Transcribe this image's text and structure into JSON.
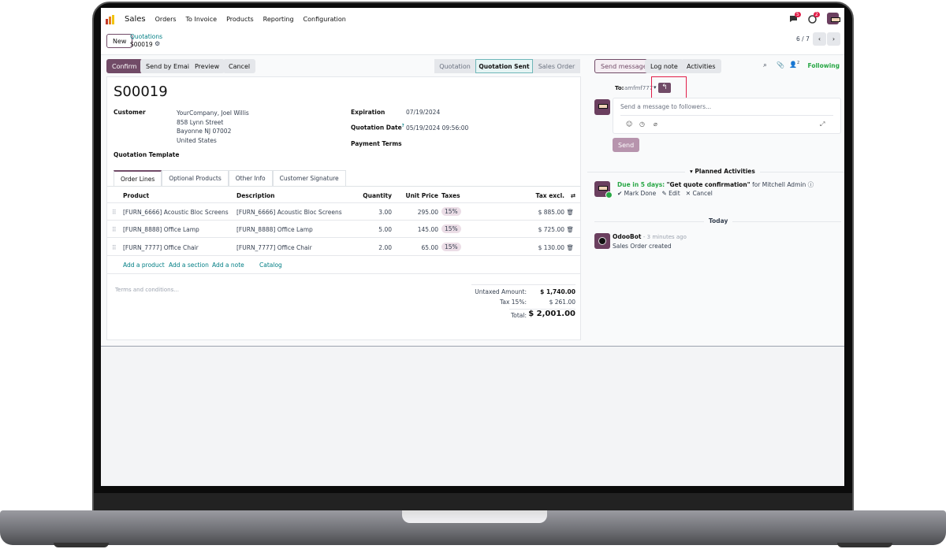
{
  "navbar": {
    "app": "Sales",
    "menu": [
      "Orders",
      "To Invoice",
      "Products",
      "Reporting",
      "Configuration"
    ],
    "chat_badge": "5",
    "activity_badge": "2"
  },
  "control": {
    "new_label": "New",
    "breadcrumb_parent": "Quotations",
    "breadcrumb_current": "S00019",
    "pager": "6 / 7"
  },
  "statusbar": {
    "buttons": [
      "Confirm",
      "Send by Email",
      "Preview",
      "Cancel"
    ],
    "stages": [
      "Quotation",
      "Quotation Sent",
      "Sales Order"
    ],
    "active_stage": "Quotation Sent"
  },
  "form": {
    "title": "S00019",
    "customer_label": "Customer",
    "customer": [
      "YourCompany, Joel Willis",
      "858 Lynn Street",
      "Bayonne NJ 07002",
      "United States"
    ],
    "expiration_label": "Expiration",
    "expiration": "07/19/2024",
    "quotation_date_label": "Quotation Date",
    "quotation_date_help": "?",
    "quotation_date": "05/19/2024 09:56:00",
    "payment_terms_label": "Payment Terms",
    "template_label": "Quotation Template"
  },
  "tabs": [
    "Order Lines",
    "Optional Products",
    "Other Info",
    "Customer Signature"
  ],
  "table": {
    "headers": [
      "Product",
      "Description",
      "Quantity",
      "Unit Price",
      "Taxes",
      "Tax excl."
    ],
    "rows": [
      {
        "product": "[FURN_6666] Acoustic Bloc Screens",
        "description": "[FURN_6666] Acoustic Bloc Screens",
        "qty": "3.00",
        "price": "295.00",
        "tax": "15%",
        "subtotal": "$ 885.00"
      },
      {
        "product": "[FURN_8888] Office Lamp",
        "description": "[FURN_8888] Office Lamp",
        "qty": "5.00",
        "price": "145.00",
        "tax": "15%",
        "subtotal": "$ 725.00"
      },
      {
        "product": "[FURN_7777] Office Chair",
        "description": "[FURN_7777] Office Chair",
        "qty": "2.00",
        "price": "65.00",
        "tax": "15%",
        "subtotal": "$ 130.00"
      }
    ],
    "actions": [
      "Add a product",
      "Add a section",
      "Add a note",
      "Catalog"
    ]
  },
  "footer": {
    "terms_placeholder": "Terms and conditions...",
    "untaxed_label": "Untaxed Amount:",
    "untaxed": "$ 1,740.00",
    "tax_label": "Tax 15%:",
    "tax": "$ 261.00",
    "total_label": "Total:",
    "total": "$ 2,001.00"
  },
  "chatter": {
    "send_message": "Send message",
    "log_note": "Log note",
    "activities": "Activities",
    "followers_count": "2",
    "following": "Following",
    "to_label": "To:",
    "to_value": "amfmf777",
    "placeholder": "Send a message to followers...",
    "send": "Send",
    "planned_label": "Planned Activities",
    "due": "Due in 5 days:",
    "activity_title": "\"Get quote confirmation\"",
    "activity_for": "for Mitchell Admin",
    "mark_done": "Mark Done",
    "edit": "Edit",
    "cancel": "Cancel",
    "today": "Today",
    "message_author": "OdooBot",
    "message_time": "- 3 minutes ago",
    "message_body": "Sales Order created"
  },
  "colors": {
    "brand": "#714b67",
    "link": "#017e84",
    "following": "#28a745",
    "highlight": "#e11d48"
  }
}
